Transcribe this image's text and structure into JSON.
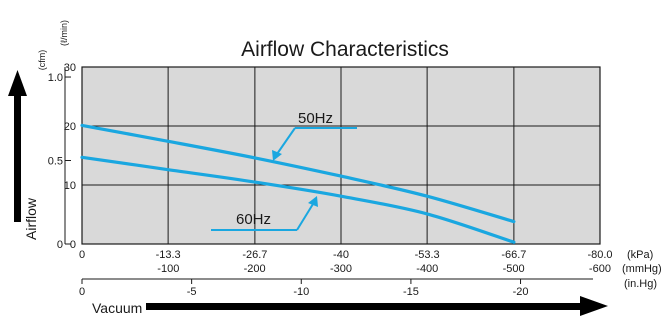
{
  "chart_data": {
    "type": "line",
    "title": "Airflow Characteristics",
    "ylabel": "Airflow",
    "xlabel": "Vacuum",
    "y_primary_unit": "(ℓ/min)",
    "y_secondary_unit": "(cfm)",
    "x_units": [
      "(kPa)",
      "(mmHg)",
      "(in.Hg)"
    ],
    "xlim": [
      0,
      -80.0
    ],
    "ylim": [
      0,
      30
    ],
    "y_ticks": [
      "30",
      "20",
      "10",
      "0"
    ],
    "y_secondary_ticks": [
      "1.0",
      "0.5",
      "0"
    ],
    "x_ticks_kpa": [
      "0",
      "-13.3",
      "-26.7",
      "-40",
      "-53.3",
      "-66.7",
      "-80.0"
    ],
    "x_ticks_mmhg": [
      "-100",
      "-200",
      "-300",
      "-400",
      "-500",
      "-600"
    ],
    "x_ticks_inhg": [
      "0",
      "-5",
      "-10",
      "-15",
      "-20"
    ],
    "grid": true,
    "series": [
      {
        "name": "50Hz",
        "x": [
          0,
          -13.3,
          -26.7,
          -40,
          -53.3,
          -66.7
        ],
        "y": [
          20.1,
          17.4,
          14.6,
          11.5,
          8.1,
          3.8
        ]
      },
      {
        "name": "60Hz",
        "x": [
          0,
          -13.3,
          -26.7,
          -40,
          -53.3,
          -66.7
        ],
        "y": [
          14.7,
          12.6,
          10.5,
          8.1,
          5.1,
          0.3
        ]
      }
    ],
    "colors": {
      "series": "#1aa7e0",
      "plot_bg": "#d9d9d9",
      "grid": "#1a1a1a"
    }
  }
}
